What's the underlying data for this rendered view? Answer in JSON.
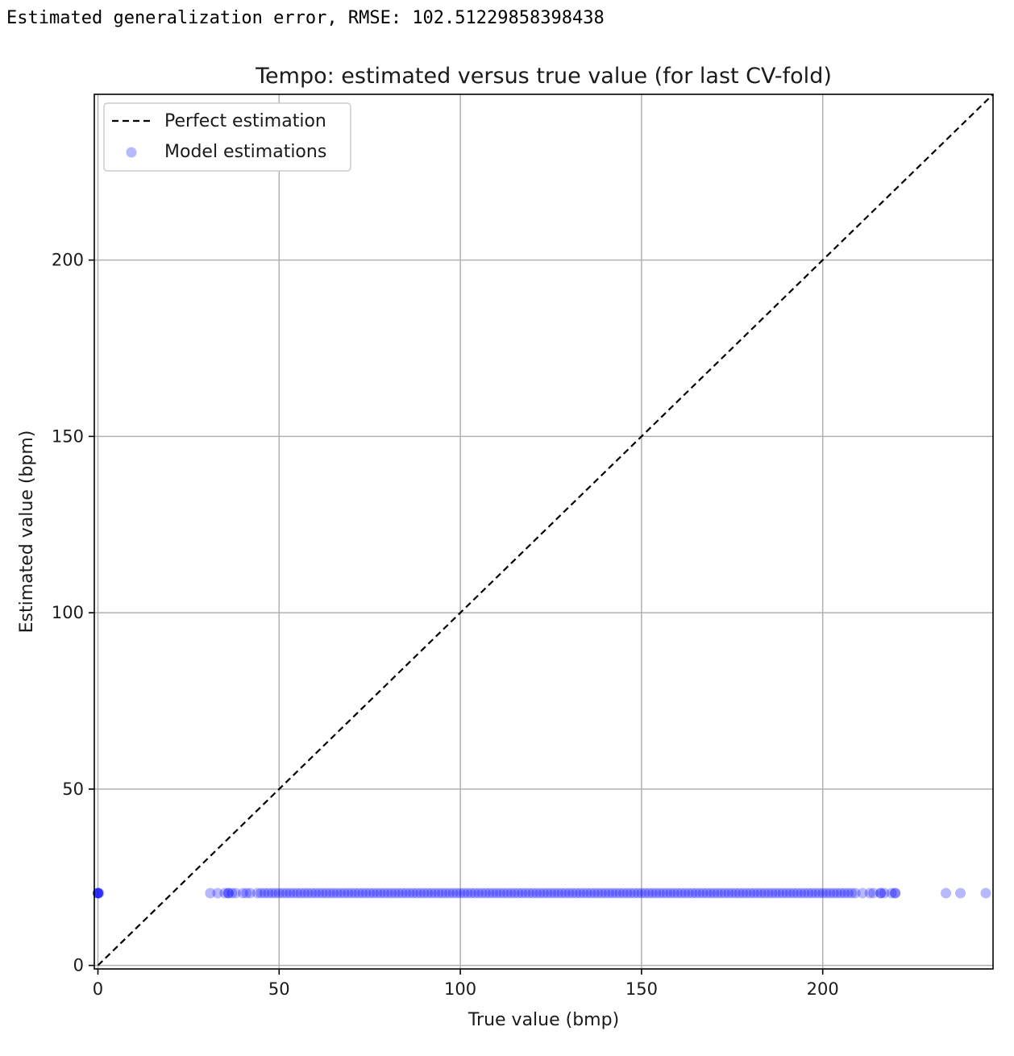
{
  "output_text": "Estimated generalization error, RMSE: 102.51229858398438",
  "chart_data": {
    "type": "scatter",
    "title": "Tempo: estimated versus true value (for last CV-fold)",
    "xlabel": "True value (bmp)",
    "ylabel": "Estimated value (bpm)",
    "xlim": [
      -1,
      247
    ],
    "ylim": [
      -1,
      247
    ],
    "xticks": [
      0,
      50,
      100,
      150,
      200
    ],
    "yticks": [
      0,
      50,
      100,
      150,
      200
    ],
    "grid": true,
    "legend_position": "upper-left",
    "series": [
      {
        "name": "Perfect estimation",
        "kind": "line",
        "style": "dashed",
        "color": "#000000",
        "x": [
          0,
          247
        ],
        "y": [
          0,
          247
        ]
      },
      {
        "name": "Model estimations",
        "kind": "scatter",
        "color": "#0000ff",
        "alpha": 0.28,
        "y_constant": 20.5,
        "x": [
          0,
          0,
          0,
          0,
          0.3,
          31,
          33,
          35,
          36,
          36,
          37,
          38,
          40,
          41,
          42,
          44,
          45,
          46,
          47,
          48,
          49,
          50,
          51,
          52,
          53,
          54,
          55,
          56,
          57,
          58,
          59,
          60,
          61,
          62,
          63,
          64,
          65,
          66,
          67,
          68,
          69,
          70,
          71,
          72,
          73,
          74,
          75,
          76,
          77,
          78,
          79,
          80,
          81,
          82,
          83,
          84,
          85,
          86,
          87,
          88,
          89,
          90,
          91,
          92,
          93,
          94,
          95,
          96,
          97,
          98,
          99,
          100,
          101,
          102,
          103,
          104,
          105,
          106,
          107,
          108,
          109,
          110,
          111,
          112,
          113,
          114,
          115,
          116,
          117,
          118,
          119,
          120,
          121,
          122,
          123,
          124,
          125,
          126,
          127,
          128,
          129,
          130,
          131,
          132,
          133,
          134,
          135,
          136,
          137,
          138,
          139,
          140,
          141,
          142,
          143,
          144,
          145,
          146,
          147,
          148,
          149,
          150,
          151,
          152,
          153,
          154,
          155,
          156,
          157,
          158,
          159,
          160,
          161,
          162,
          163,
          164,
          165,
          166,
          167,
          168,
          169,
          170,
          171,
          172,
          173,
          174,
          175,
          176,
          177,
          178,
          179,
          180,
          181,
          182,
          183,
          184,
          185,
          186,
          187,
          188,
          189,
          190,
          191,
          192,
          193,
          194,
          195,
          196,
          197,
          198,
          199,
          200,
          201,
          202,
          203,
          204,
          205,
          206,
          207,
          208,
          209,
          211,
          213,
          214,
          216,
          216,
          217,
          219,
          220,
          220,
          234,
          238,
          245
        ]
      }
    ]
  }
}
